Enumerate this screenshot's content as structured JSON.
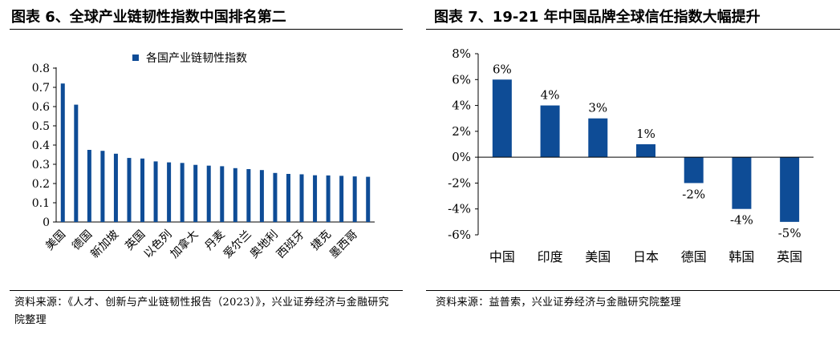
{
  "left": {
    "title": "图表 6、全球产业链韧性指数中国排名第二",
    "source": "资料来源：《人才、创新与产业链韧性报告（2023）》，兴业证券经济与金融研究院整理"
  },
  "right": {
    "title": "图表 7、19-21 年中国品牌全球信任指数大幅提升",
    "source": "资料来源：益普索，兴业证券经济与金融研究院整理"
  },
  "chart_data": [
    {
      "type": "bar",
      "title": "",
      "series": [
        {
          "name": "各国产业链韧性指数",
          "values": [
            0.72,
            0.61,
            0.375,
            0.37,
            0.355,
            0.333,
            0.33,
            0.315,
            0.31,
            0.307,
            0.297,
            0.293,
            0.29,
            0.28,
            0.275,
            0.27,
            0.255,
            0.25,
            0.248,
            0.243,
            0.242,
            0.24,
            0.237,
            0.235
          ]
        }
      ],
      "tick_labels": [
        "美国",
        "德国",
        "新加坡",
        "英国",
        "以色列",
        "加拿大",
        "丹麦",
        "爱尔兰",
        "奥地利",
        "西班牙",
        "捷克",
        "墨西哥"
      ],
      "ylim": [
        0,
        0.8
      ],
      "yticks": [
        0,
        0.1,
        0.2,
        0.3,
        0.4,
        0.5,
        0.6,
        0.7,
        0.8
      ],
      "xlabel": "",
      "ylabel": "",
      "legend": "top",
      "grid": false,
      "color": "#0E4C96"
    },
    {
      "type": "bar",
      "title": "",
      "categories": [
        "中国",
        "印度",
        "美国",
        "日本",
        "德国",
        "韩国",
        "英国"
      ],
      "values": [
        6,
        4,
        3,
        1,
        -2,
        -4,
        -5
      ],
      "data_labels": [
        "6%",
        "4%",
        "3%",
        "1%",
        "-2%",
        "-4%",
        "-5%"
      ],
      "ylim": [
        -6,
        8
      ],
      "yticks": [
        "-6%",
        "-4%",
        "-2%",
        "0%",
        "2%",
        "4%",
        "6%",
        "8%"
      ],
      "xlabel": "",
      "ylabel": "",
      "grid": false,
      "color": "#0E4C96"
    }
  ]
}
